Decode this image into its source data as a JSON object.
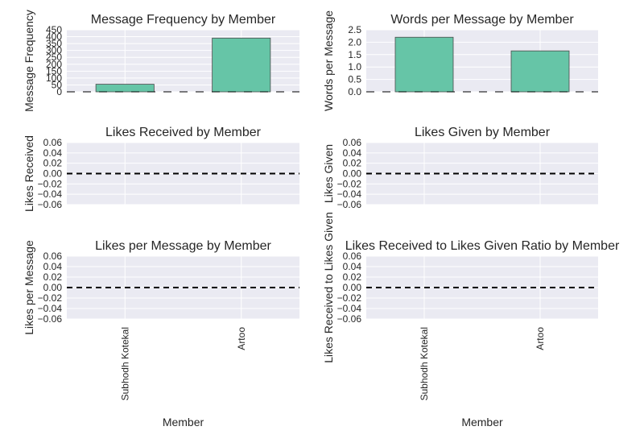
{
  "style": {
    "plot_bg": "#eaeaf2",
    "grid_color": "#ffffff",
    "bar_color": "#66c5a7",
    "bar_edge": "#4a4a4a",
    "zero_line_color": "#000000"
  },
  "chart_data": [
    {
      "type": "bar",
      "title": "Message Frequency by Member",
      "xlabel": "",
      "ylabel": "Message Frequency",
      "categories": [
        "Subhodh Kotekal",
        "Artoo"
      ],
      "values": [
        55,
        390
      ],
      "ylim": [
        0,
        450
      ],
      "yticks": [
        "0",
        "50",
        "100",
        "150",
        "200",
        "250",
        "300",
        "350",
        "400",
        "450"
      ],
      "show_xticklabels": false,
      "grid": true
    },
    {
      "type": "bar",
      "title": "Words per Message by Member",
      "xlabel": "",
      "ylabel": "Words per Message",
      "categories": [
        "Subhodh Kotekal",
        "Artoo"
      ],
      "values": [
        2.2,
        1.65
      ],
      "ylim": [
        0,
        2.5
      ],
      "yticks": [
        "0.0",
        "0.5",
        "1.0",
        "1.5",
        "2.0",
        "2.5"
      ],
      "show_xticklabels": false,
      "grid": true
    },
    {
      "type": "bar",
      "title": "Likes Received by Member",
      "xlabel": "",
      "ylabel": "Likes Received",
      "categories": [
        "Subhodh Kotekal",
        "Artoo"
      ],
      "values": [
        0,
        0
      ],
      "ylim": [
        -0.06,
        0.06
      ],
      "yticks": [
        "−0.06",
        "−0.04",
        "−0.02",
        "0.00",
        "0.02",
        "0.04",
        "0.06"
      ],
      "show_xticklabels": false,
      "grid": true
    },
    {
      "type": "bar",
      "title": "Likes Given by Member",
      "xlabel": "",
      "ylabel": "Likes Given",
      "categories": [
        "Subhodh Kotekal",
        "Artoo"
      ],
      "values": [
        0,
        0
      ],
      "ylim": [
        -0.06,
        0.06
      ],
      "yticks": [
        "−0.06",
        "−0.04",
        "−0.02",
        "0.00",
        "0.02",
        "0.04",
        "0.06"
      ],
      "show_xticklabels": false,
      "grid": true
    },
    {
      "type": "bar",
      "title": "Likes per Message by Member",
      "xlabel": "Member",
      "ylabel": "Likes per Message",
      "categories": [
        "Subhodh Kotekal",
        "Artoo"
      ],
      "values": [
        0,
        0
      ],
      "ylim": [
        -0.06,
        0.06
      ],
      "yticks": [
        "−0.06",
        "−0.04",
        "−0.02",
        "0.00",
        "0.02",
        "0.04",
        "0.06"
      ],
      "show_xticklabels": true,
      "grid": true
    },
    {
      "type": "bar",
      "title": "Likes Received to Likes Given Ratio by Member",
      "xlabel": "Member",
      "ylabel": "Likes Received to Likes Given",
      "categories": [
        "Subhodh Kotekal",
        "Artoo"
      ],
      "values": [
        0,
        0
      ],
      "ylim": [
        -0.06,
        0.06
      ],
      "yticks": [
        "−0.06",
        "−0.04",
        "−0.02",
        "0.00",
        "0.02",
        "0.04",
        "0.06"
      ],
      "show_xticklabels": true,
      "grid": true
    }
  ]
}
